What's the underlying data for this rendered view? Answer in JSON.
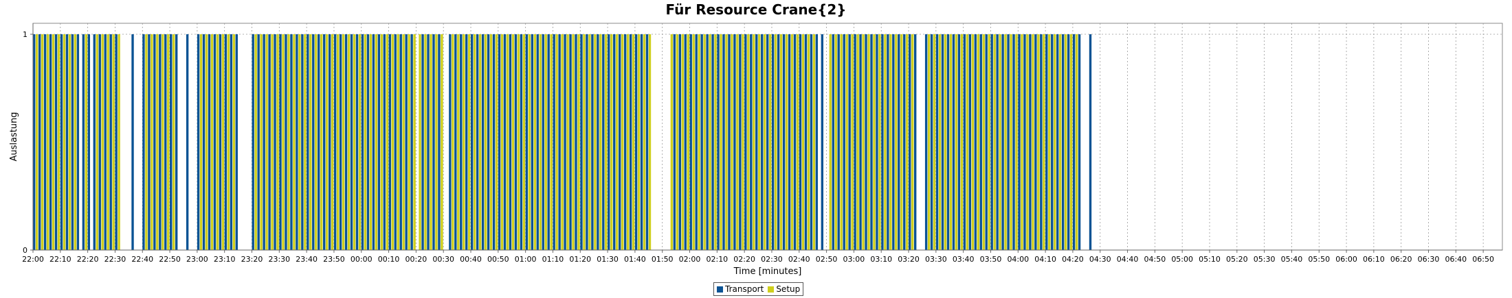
{
  "chart_data": {
    "type": "bar",
    "title": "Für Resource Crane{2}",
    "xlabel": "Time [minutes]",
    "ylabel": "Auslastung",
    "ylim": [
      0,
      1
    ],
    "yticks": [
      "0",
      "1"
    ],
    "xlim": [
      "22:00",
      "06:57"
    ],
    "xticks": [
      "22:00",
      "22:10",
      "22:20",
      "22:30",
      "22:40",
      "22:50",
      "23:00",
      "23:10",
      "23:20",
      "23:30",
      "23:40",
      "23:50",
      "00:00",
      "00:10",
      "00:20",
      "00:30",
      "00:40",
      "00:50",
      "01:00",
      "01:10",
      "01:20",
      "01:30",
      "01:40",
      "01:50",
      "02:00",
      "02:10",
      "02:20",
      "02:30",
      "02:40",
      "02:50",
      "03:00",
      "03:10",
      "03:20",
      "03:30",
      "03:40",
      "03:50",
      "04:00",
      "04:10",
      "04:20",
      "04:30",
      "04:40",
      "04:50",
      "05:00",
      "05:10",
      "05:20",
      "05:30",
      "05:40",
      "05:50",
      "06:00",
      "06:10",
      "06:20",
      "06:30",
      "06:40",
      "06:50"
    ],
    "grid": true,
    "legend_position": "bottom-center",
    "series": [
      {
        "name": "Transport",
        "color": "#0b5394",
        "activity_blocks": [
          [
            "22:00",
            "22:17"
          ],
          [
            "22:18",
            "22:21"
          ],
          [
            "22:22",
            "22:32"
          ],
          [
            "22:36",
            "22:37"
          ],
          [
            "22:40",
            "22:53"
          ],
          [
            "22:56",
            "22:57"
          ],
          [
            "23:00",
            "23:15"
          ],
          [
            "23:20",
            "00:20"
          ],
          [
            "00:21",
            "00:30"
          ],
          [
            "00:32",
            "01:46"
          ],
          [
            "01:53",
            "02:47"
          ],
          [
            "02:48",
            "02:49"
          ],
          [
            "02:51",
            "03:23"
          ],
          [
            "03:26",
            "04:23"
          ],
          [
            "04:26",
            "04:27"
          ]
        ]
      },
      {
        "name": "Setup",
        "color": "#cfcf1c",
        "activity_blocks": [
          [
            "22:00",
            "22:17"
          ],
          [
            "22:18",
            "22:21"
          ],
          [
            "22:22",
            "22:32"
          ],
          [
            "22:40",
            "22:53"
          ],
          [
            "23:00",
            "23:15"
          ],
          [
            "23:20",
            "00:20"
          ],
          [
            "00:21",
            "00:30"
          ],
          [
            "00:32",
            "01:46"
          ],
          [
            "01:53",
            "02:47"
          ],
          [
            "02:48",
            "02:49"
          ],
          [
            "02:51",
            "03:23"
          ],
          [
            "03:26",
            "04:23"
          ]
        ]
      }
    ],
    "values": [
      1,
      1
    ]
  }
}
